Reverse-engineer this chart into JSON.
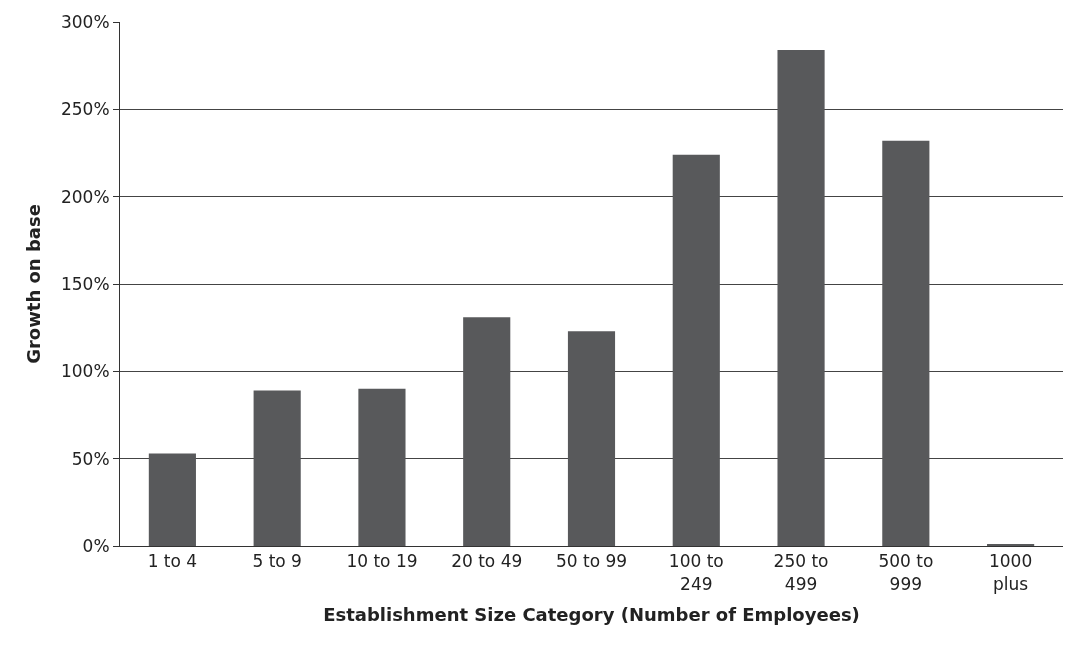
{
  "chart_data": {
    "type": "bar",
    "xlabel": "Establishment Size Category (Number of Employees)",
    "ylabel": "Growth on base",
    "categories": [
      "1 to 4",
      "5 to 9",
      "10 to 19",
      "20 to 49",
      "50 to 99",
      "100 to\n249",
      "250 to\n499",
      "500 to\n999",
      "1000\nplus"
    ],
    "values": [
      53,
      89,
      90,
      131,
      123,
      224,
      284,
      232,
      1
    ],
    "color": "#58595b",
    "ylim": [
      0,
      300
    ],
    "yticks": [
      {
        "value": 0,
        "label": "0%"
      },
      {
        "value": 50,
        "label": "50%"
      },
      {
        "value": 100,
        "label": "100%"
      },
      {
        "value": 150,
        "label": "150%"
      },
      {
        "value": 200,
        "label": "200%"
      },
      {
        "value": 250,
        "label": "250%"
      },
      {
        "value": 300,
        "label": "300%"
      }
    ],
    "grid": "y"
  }
}
